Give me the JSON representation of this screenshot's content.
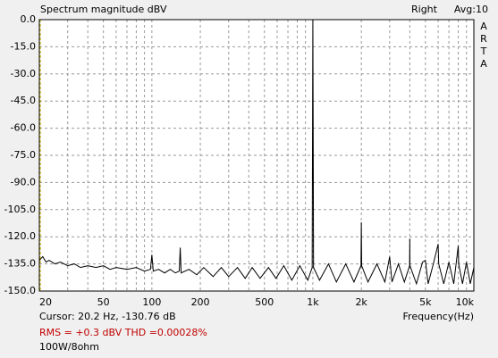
{
  "chart_data": {
    "type": "line",
    "title": "Spectrum magnitude dBV",
    "channel": "Right",
    "average": "Avg:10",
    "brand": [
      "A",
      "R",
      "T",
      "A"
    ],
    "x_label": "Frequency(Hz)",
    "x_scale": "log",
    "xlim": [
      20,
      10000
    ],
    "ylim": [
      -150,
      0
    ],
    "xticks": [
      20,
      50,
      100,
      200,
      500,
      {
        "value": 1000,
        "label": "1k"
      },
      {
        "value": 2000,
        "label": "2k"
      },
      {
        "value": 5000,
        "label": "5k"
      },
      {
        "value": 10000,
        "label": "10k"
      }
    ],
    "xgrid_minor": [
      30,
      40,
      60,
      70,
      80,
      90,
      300,
      400,
      600,
      700,
      800,
      900,
      3000,
      4000,
      6000,
      7000,
      8000,
      9000
    ],
    "yticks": [
      {
        "value": 0,
        "label": "0.0"
      },
      {
        "value": -15,
        "label": "-15.0"
      },
      {
        "value": -30,
        "label": "-30.0"
      },
      {
        "value": -45,
        "label": "-45.0"
      },
      {
        "value": -60,
        "label": "-60.0"
      },
      {
        "value": -75,
        "label": "-75.0"
      },
      {
        "value": -90,
        "label": "-90.0"
      },
      {
        "value": -105,
        "label": "-105.0"
      },
      {
        "value": -120,
        "label": "-120.0"
      },
      {
        "value": -135,
        "label": "-135.0"
      },
      {
        "value": -150,
        "label": "-150.0"
      }
    ],
    "grid": true,
    "cursor_x": 20.2,
    "cursor_color": "#c8b400",
    "cursor_text": "Cursor:   20.2 Hz, -130.76 dB",
    "rms_text": "RMS =  +0.3 dBV   THD =0.00028%",
    "note": "100W/8ohm",
    "x": [
      20,
      21,
      22,
      23,
      25,
      27,
      30,
      33,
      36,
      40,
      45,
      50,
      55,
      60,
      70,
      80,
      90,
      98,
      100,
      102,
      110,
      120,
      130,
      140,
      148,
      150,
      152,
      170,
      190,
      210,
      240,
      270,
      300,
      340,
      380,
      420,
      470,
      530,
      590,
      660,
      740,
      830,
      930,
      990,
      1000,
      1010,
      1100,
      1250,
      1400,
      1600,
      1800,
      1990,
      2000,
      2010,
      2200,
      2500,
      2800,
      3000,
      3100,
      3400,
      3700,
      3990,
      4000,
      4010,
      4400,
      4800,
      5000,
      5200,
      5600,
      6000,
      6050,
      6500,
      7000,
      7500,
      8000,
      8050,
      8500,
      9000,
      9500,
      10000
    ],
    "series": [
      {
        "name": "Right",
        "color": "#000000",
        "values": [
          -133,
          -131,
          -134,
          -133,
          -135,
          -134,
          -136,
          -135,
          -137,
          -136,
          -137,
          -136,
          -138,
          -137,
          -138,
          -137,
          -139,
          -138,
          -130,
          -139,
          -138,
          -140,
          -138,
          -140,
          -139,
          -126,
          -140,
          -138,
          -141,
          -137,
          -142,
          -137,
          -142,
          -137,
          -143,
          -137,
          -143,
          -137,
          -143,
          -136,
          -144,
          -136,
          -144,
          -137,
          0,
          -137,
          -144,
          -135,
          -145,
          -135,
          -145,
          -136,
          -112,
          -136,
          -145,
          -135,
          -145,
          -131,
          -145,
          -135,
          -145,
          -136,
          -121,
          -136,
          -146,
          -134,
          -133,
          -146,
          -135,
          -124,
          -135,
          -146,
          -134,
          -146,
          -125,
          -135,
          -146,
          -134,
          -146,
          -137
        ]
      }
    ]
  }
}
